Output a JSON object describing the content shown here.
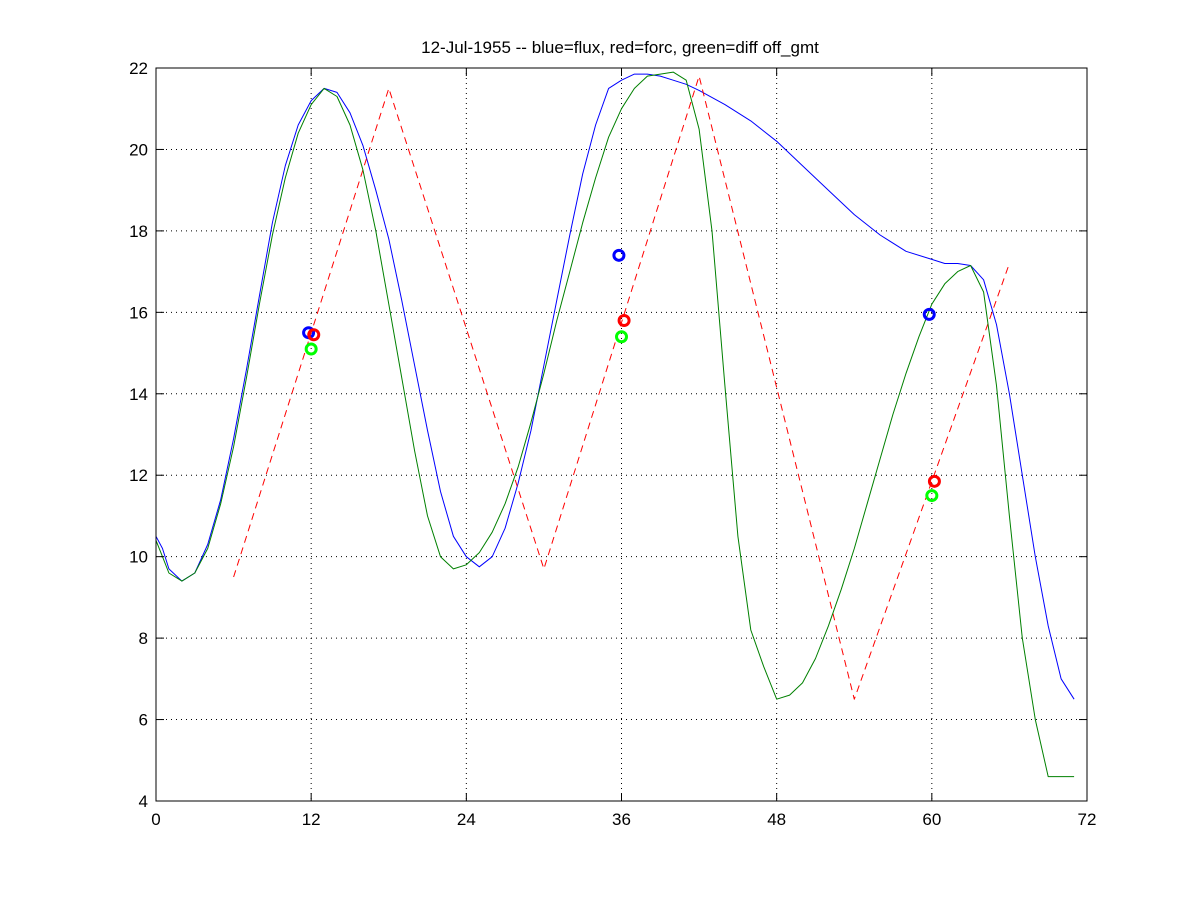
{
  "chart_data": {
    "type": "line",
    "title": "12-Jul-1955 -- blue=flux, red=forc, green=diff off_gmt",
    "xlabel": "",
    "ylabel": "",
    "xlim": [
      0,
      72
    ],
    "ylim": [
      4,
      22
    ],
    "grid": true,
    "xticks": [
      0,
      12,
      24,
      36,
      48,
      60,
      72
    ],
    "yticks": [
      4,
      6,
      8,
      10,
      12,
      14,
      16,
      18,
      20,
      22
    ],
    "colors": {
      "flux": "#0000ff",
      "forc": "#ff0000",
      "diff": "#008000",
      "diff_marker": "#00ff00"
    },
    "series": [
      {
        "style": "solid",
        "color": "#0000ff",
        "x": [
          0,
          0.5,
          1,
          2,
          3,
          4,
          5,
          6,
          7,
          8,
          9,
          10,
          11,
          12,
          13,
          14,
          15,
          16,
          17,
          18,
          19,
          20,
          21,
          22,
          23,
          24,
          25,
          26,
          27,
          28,
          29,
          30,
          31,
          32,
          33,
          34,
          35,
          36,
          37,
          38,
          39,
          40,
          41,
          42,
          44,
          46,
          48,
          50,
          52,
          54,
          56,
          58,
          60,
          61,
          62,
          63,
          64,
          65,
          66,
          67,
          68,
          69,
          70,
          71
        ],
        "y": [
          10.5,
          10.2,
          9.7,
          9.4,
          9.6,
          10.3,
          11.4,
          12.9,
          14.6,
          16.4,
          18.2,
          19.6,
          20.6,
          21.2,
          21.5,
          21.4,
          20.9,
          20.1,
          19.0,
          17.8,
          16.3,
          14.7,
          13.1,
          11.6,
          10.5,
          10.0,
          9.75,
          10.0,
          10.7,
          11.8,
          13.1,
          14.7,
          16.3,
          17.9,
          19.4,
          20.6,
          21.5,
          21.7,
          21.85,
          21.85,
          21.8,
          21.7,
          21.6,
          21.45,
          21.1,
          20.7,
          20.2,
          19.6,
          19.0,
          18.4,
          17.9,
          17.5,
          17.3,
          17.2,
          17.2,
          17.15,
          16.8,
          15.7,
          14.0,
          12.0,
          10.0,
          8.3,
          7.0,
          6.5
        ]
      },
      {
        "style": "dashed",
        "color": "#ff0000",
        "x": [
          6,
          18,
          30,
          42,
          54,
          66
        ],
        "y": [
          9.5,
          21.5,
          9.7,
          21.8,
          6.5,
          17.2
        ]
      },
      {
        "style": "solid",
        "color": "#008000",
        "x": [
          0,
          0.5,
          1,
          2,
          3,
          4,
          5,
          6,
          7,
          8,
          9,
          10,
          11,
          12,
          13,
          14,
          15,
          16,
          17,
          18,
          19,
          20,
          21,
          22,
          23,
          24,
          25,
          26,
          27,
          28,
          29,
          30,
          31,
          32,
          33,
          34,
          35,
          36,
          37,
          38,
          39,
          40,
          41,
          42,
          43,
          44,
          45,
          46,
          47,
          48,
          49,
          50,
          51,
          52,
          53,
          54,
          55,
          56,
          57,
          58,
          59,
          60,
          61,
          62,
          63,
          64,
          65,
          66,
          67,
          68,
          69,
          70,
          71
        ],
        "y": [
          10.4,
          10.0,
          9.6,
          9.4,
          9.6,
          10.2,
          11.3,
          12.7,
          14.4,
          16.2,
          17.9,
          19.3,
          20.4,
          21.1,
          21.5,
          21.3,
          20.6,
          19.5,
          18.0,
          16.2,
          14.4,
          12.6,
          11.0,
          10.0,
          9.7,
          9.8,
          10.1,
          10.6,
          11.3,
          12.2,
          13.3,
          14.5,
          15.8,
          17.0,
          18.2,
          19.3,
          20.3,
          21.0,
          21.5,
          21.8,
          21.85,
          21.9,
          21.7,
          20.5,
          18.0,
          14.2,
          10.5,
          8.2,
          7.3,
          6.5,
          6.6,
          6.9,
          7.5,
          8.3,
          9.2,
          10.2,
          11.3,
          12.4,
          13.5,
          14.5,
          15.4,
          16.2,
          16.7,
          17.0,
          17.15,
          16.5,
          14.2,
          11.0,
          8.0,
          6.0,
          4.6,
          4.6,
          4.6
        ]
      }
    ],
    "markers": [
      {
        "color": "#0000ff",
        "x": 11.8,
        "y": 15.5
      },
      {
        "color": "#ff0000",
        "x": 12.2,
        "y": 15.45
      },
      {
        "color": "#00ff00",
        "x": 12.0,
        "y": 15.1
      },
      {
        "color": "#0000ff",
        "x": 35.8,
        "y": 17.4
      },
      {
        "color": "#ff0000",
        "x": 36.2,
        "y": 15.8
      },
      {
        "color": "#00ff00",
        "x": 36.0,
        "y": 15.4
      },
      {
        "color": "#0000ff",
        "x": 59.8,
        "y": 15.95
      },
      {
        "color": "#ff0000",
        "x": 60.2,
        "y": 11.85
      },
      {
        "color": "#00ff00",
        "x": 60.0,
        "y": 11.5
      }
    ]
  }
}
